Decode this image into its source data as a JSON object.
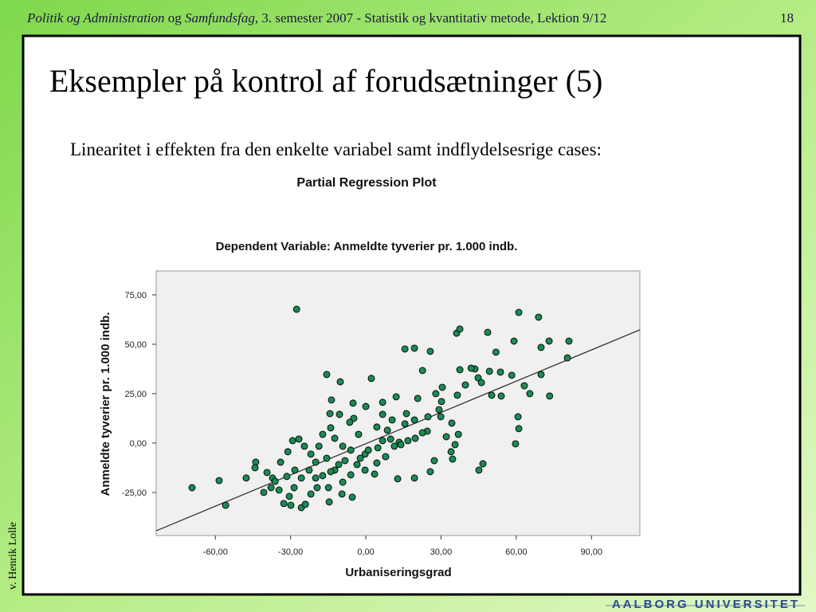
{
  "header": {
    "segments": [
      "Politik og Administration",
      " og ",
      "Samfundsfag",
      ", 3. semester 2007 - Statistik og kvantitativ metode, Lektion 9/12"
    ],
    "page_number": "18"
  },
  "title": "Eksempler på kontrol af forudsætninger (5)",
  "subtitle": "Linearitet i effekten fra den enkelte variabel samt indflydelsesrige cases:",
  "author": "v. Henrik Lolle",
  "logo": "AALBORG UNIVERSITET",
  "chart_data": {
    "type": "scatter",
    "title": "Partial Regression Plot",
    "subtitle": "Dependent Variable: Anmeldte tyverier pr. 1.000 indb.",
    "x_label": "Urbaniseringsgrad",
    "y_label": "Anmeldte tyverier pr. 1.000 indb.",
    "color": "#1b8a55",
    "xlim": [
      -83.6,
      109.3
    ],
    "ylim": [
      -46.8,
      87.1
    ],
    "xticks": [
      {
        "value": -60,
        "label": "-60,00"
      },
      {
        "value": -30,
        "label": "-30,00"
      },
      {
        "value": 0,
        "label": "0,00"
      },
      {
        "value": 30,
        "label": "30,00"
      },
      {
        "value": 60,
        "label": "60,00"
      },
      {
        "value": 90,
        "label": "90,00"
      }
    ],
    "yticks": [
      {
        "value": -25,
        "label": "-25,00"
      },
      {
        "value": 0,
        "label": "0,00"
      },
      {
        "value": 25,
        "label": "25,00"
      },
      {
        "value": 50,
        "label": "50,00"
      },
      {
        "value": 75,
        "label": "75,00"
      }
    ],
    "fit_line": {
      "x": [
        -83.6,
        109.3
      ],
      "y": [
        -44.4,
        57.3
      ]
    },
    "x": [
      -69.3,
      -58.5,
      -55.9,
      -47.7,
      -43.9,
      -44.2,
      -27.6,
      -15.6,
      -10.2,
      2.2,
      15.6,
      19.4,
      25.7,
      22.6,
      36.2,
      37.5,
      48.6,
      61,
      68.9,
      59.1,
      73.1,
      81,
      80.4,
      69.9,
      51.9,
      69.9,
      73.3,
      63.2,
      65.4,
      60.7,
      61,
      59.7,
      46.7,
      45.1,
      43.5,
      37.5,
      42,
      44.8,
      46.1,
      49.3,
      53.7,
      58.2,
      54,
      50.2,
      36.5,
      39.7,
      30.5,
      27.9,
      20.7,
      12.1,
      16.2,
      19.4,
      30.2,
      29.9,
      24.8,
      29.2,
      34.3,
      36.9,
      35.6,
      34,
      34.6,
      27.3,
      24.5,
      25.7,
      19.4,
      12.7,
      13.3,
      11.4,
      6.7,
      7.9,
      4.4,
      -0.3,
      -2.9,
      -4.8,
      -6.4,
      -10.5,
      -14,
      -14.3,
      -17.2,
      -18.7,
      -20,
      -22.6,
      -25.7,
      -28.6,
      -30.5,
      -32.7,
      -34.6,
      -37.2,
      -39.4,
      -34,
      -31.1,
      -29.2,
      -26.7,
      -24.5,
      -21.9,
      -15.6,
      -12.4,
      -9.2,
      -6,
      -3.5,
      -6,
      -9.2,
      -12.4,
      -25.7,
      -14.6,
      -5.4,
      -9.5,
      -14.9,
      -19.4,
      -21.9,
      -24.1,
      -29.9,
      -40.7,
      -37.8,
      -36.2,
      -31.5,
      -28.3,
      -20,
      -17.2,
      -14,
      -10.8,
      -8.3,
      -2.2,
      1,
      4.8,
      9.9,
      14,
      16.8,
      19.7,
      8.6,
      4.4,
      6.7,
      10.5,
      0,
      -5.1,
      -13.7,
      6.7,
      15.6,
      22.6,
      32.1,
      -0.3,
      3.5
    ],
    "y": [
      -22.6,
      -19,
      -31.5,
      -17.7,
      -9.7,
      -12.5,
      67.7,
      34.7,
      31,
      32.7,
      47.6,
      48,
      46.4,
      36.7,
      55.6,
      57.7,
      56,
      66.1,
      63.7,
      51.6,
      51.6,
      51.6,
      43.1,
      48.4,
      46,
      34.7,
      23.8,
      29,
      25,
      13.3,
      7.3,
      -0.4,
      -10.5,
      -13.7,
      37.5,
      37.1,
      37.9,
      33,
      30.6,
      36.3,
      35.9,
      34.3,
      23.8,
      24.2,
      24.2,
      29.4,
      28.2,
      25,
      22.6,
      23.4,
      14.9,
      11.7,
      21,
      13.3,
      13.3,
      16.9,
      10.1,
      4.4,
      -0.8,
      -4.4,
      -8.1,
      -8.9,
      6,
      -14.5,
      -17.7,
      -18.1,
      0.4,
      -1.6,
      1.2,
      -6.9,
      -10.1,
      -5.6,
      4.4,
      12.5,
      10.5,
      14.5,
      7.7,
      14.9,
      4.4,
      -1.6,
      -9.7,
      -13.7,
      -17.7,
      -22.6,
      -27,
      -30.6,
      -23.8,
      -17.7,
      -14.9,
      -9.7,
      -4.4,
      1.2,
      2,
      -1.6,
      -5.6,
      -7.7,
      -13.7,
      -19.8,
      -16.1,
      -10.9,
      -3.6,
      -1.6,
      2.4,
      -32.7,
      -29.8,
      -27.4,
      -25.8,
      -22.6,
      -22.6,
      -25.8,
      -31,
      -31.5,
      -25,
      -22.6,
      -19.4,
      -16.9,
      -13.7,
      -17.7,
      -16.5,
      -14.5,
      -10.9,
      -8.9,
      -7.7,
      -3.6,
      -2.4,
      2,
      -0.8,
      1.2,
      2.4,
      6.5,
      8.1,
      14.5,
      11.7,
      18.5,
      20.2,
      21.8,
      20.6,
      9.7,
      5.2,
      3.2,
      -13.7,
      -15.7
    ]
  }
}
